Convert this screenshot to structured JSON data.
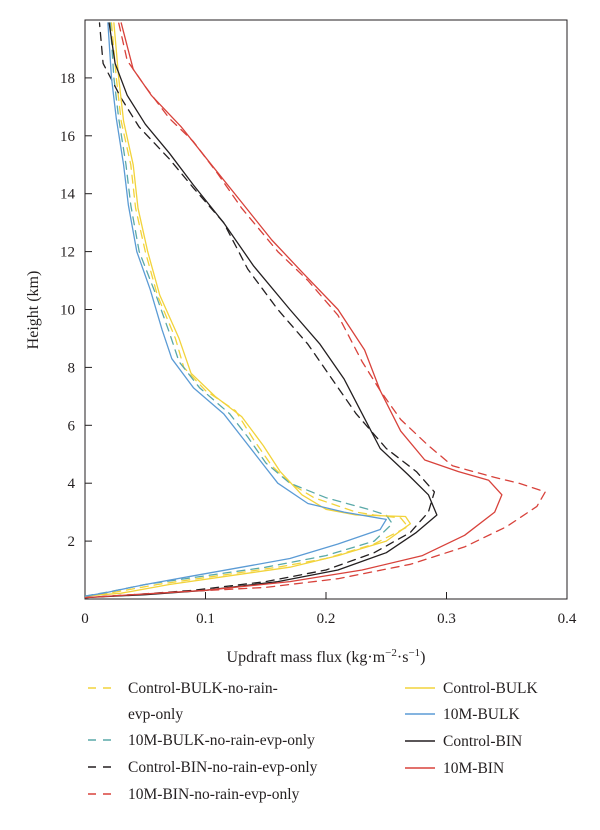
{
  "chart_data": {
    "type": "line",
    "xlabel_main": "Updraft mass flux (kg·m",
    "xlabel_sup1": "−2",
    "xlabel_mid": "·s",
    "xlabel_sup2": "−1",
    "xlabel_end": ")",
    "ylabel": "Height (km)",
    "xlim": [
      0,
      0.4
    ],
    "ylim": [
      0,
      20
    ],
    "xticks": [
      "0",
      "0.1",
      "0.2",
      "0.3",
      "0.4"
    ],
    "xtick_values": [
      0,
      0.1,
      0.2,
      0.3,
      0.4
    ],
    "yticks": [
      "2",
      "4",
      "6",
      "8",
      "10",
      "12",
      "14",
      "16",
      "18"
    ],
    "ytick_values": [
      2,
      4,
      6,
      8,
      10,
      12,
      14,
      16,
      18
    ],
    "grid": false,
    "legend_position": "bottom",
    "series": [
      {
        "name": "Control-BULK-no-rain-evp-only",
        "legend_lines": [
          "Control-BULK-no-rain-",
          "evp-only"
        ],
        "color": "#f2d33b",
        "dash": "8,6",
        "points": [
          [
            0.0,
            0.1
          ],
          [
            0.02,
            0.2
          ],
          [
            0.06,
            0.5
          ],
          [
            0.11,
            0.8
          ],
          [
            0.16,
            1.1
          ],
          [
            0.2,
            1.4
          ],
          [
            0.24,
            1.9
          ],
          [
            0.268,
            2.5
          ],
          [
            0.262,
            2.8
          ],
          [
            0.24,
            2.9
          ],
          [
            0.225,
            3.0
          ],
          [
            0.19,
            3.5
          ],
          [
            0.17,
            4.0
          ],
          [
            0.155,
            4.6
          ],
          [
            0.14,
            5.5
          ],
          [
            0.125,
            6.5
          ],
          [
            0.1,
            7.2
          ],
          [
            0.082,
            8.0
          ],
          [
            0.075,
            9.0
          ],
          [
            0.06,
            10.5
          ],
          [
            0.05,
            12.0
          ],
          [
            0.042,
            13.5
          ],
          [
            0.038,
            15.0
          ],
          [
            0.03,
            16.5
          ],
          [
            0.026,
            18.0
          ],
          [
            0.022,
            19.9
          ]
        ]
      },
      {
        "name": "10M-BULK-no-rain-evp-only",
        "legend_lines": [
          "10M-BULK-no-rain-evp-only"
        ],
        "color": "#5aa9a8",
        "dash": "8,6",
        "points": [
          [
            0.0,
            0.1
          ],
          [
            0.02,
            0.25
          ],
          [
            0.05,
            0.5
          ],
          [
            0.1,
            0.8
          ],
          [
            0.15,
            1.1
          ],
          [
            0.2,
            1.5
          ],
          [
            0.24,
            2.0
          ],
          [
            0.255,
            2.6
          ],
          [
            0.25,
            2.9
          ],
          [
            0.235,
            3.1
          ],
          [
            0.2,
            3.5
          ],
          [
            0.17,
            4.0
          ],
          [
            0.15,
            4.7
          ],
          [
            0.135,
            5.6
          ],
          [
            0.12,
            6.4
          ],
          [
            0.095,
            7.3
          ],
          [
            0.078,
            8.2
          ],
          [
            0.07,
            9.2
          ],
          [
            0.058,
            10.6
          ],
          [
            0.045,
            12.0
          ],
          [
            0.038,
            13.6
          ],
          [
            0.034,
            15.0
          ],
          [
            0.028,
            16.6
          ],
          [
            0.024,
            18.0
          ],
          [
            0.021,
            19.9
          ]
        ]
      },
      {
        "name": "Control-BIN-no-rain-evp-only",
        "legend_lines": [
          "Control-BIN-no-rain-evp-only"
        ],
        "color": "#231f20",
        "dash": "8,6",
        "points": [
          [
            0.0,
            0.05
          ],
          [
            0.04,
            0.15
          ],
          [
            0.09,
            0.3
          ],
          [
            0.15,
            0.6
          ],
          [
            0.2,
            1.0
          ],
          [
            0.24,
            1.6
          ],
          [
            0.27,
            2.3
          ],
          [
            0.285,
            3.0
          ],
          [
            0.29,
            3.7
          ],
          [
            0.275,
            4.4
          ],
          [
            0.25,
            5.2
          ],
          [
            0.225,
            6.4
          ],
          [
            0.205,
            7.6
          ],
          [
            0.185,
            8.8
          ],
          [
            0.16,
            10.0
          ],
          [
            0.135,
            11.4
          ],
          [
            0.115,
            13.0
          ],
          [
            0.09,
            14.2
          ],
          [
            0.07,
            15.2
          ],
          [
            0.045,
            16.3
          ],
          [
            0.03,
            17.3
          ],
          [
            0.015,
            18.5
          ],
          [
            0.012,
            19.9
          ]
        ]
      },
      {
        "name": "10M-BIN-no-rain-evp-only",
        "legend_lines": [
          "10M-BIN-no-rain-evp-only"
        ],
        "color": "#d8423b",
        "dash": "8,6",
        "points": [
          [
            0.0,
            0.05
          ],
          [
            0.08,
            0.25
          ],
          [
            0.15,
            0.4
          ],
          [
            0.21,
            0.7
          ],
          [
            0.27,
            1.2
          ],
          [
            0.315,
            1.8
          ],
          [
            0.35,
            2.5
          ],
          [
            0.375,
            3.2
          ],
          [
            0.382,
            3.7
          ],
          [
            0.36,
            4.0
          ],
          [
            0.34,
            4.2
          ],
          [
            0.305,
            4.6
          ],
          [
            0.285,
            5.3
          ],
          [
            0.262,
            6.2
          ],
          [
            0.245,
            7.2
          ],
          [
            0.23,
            8.2
          ],
          [
            0.21,
            9.8
          ],
          [
            0.185,
            11.0
          ],
          [
            0.16,
            12.0
          ],
          [
            0.13,
            13.5
          ],
          [
            0.11,
            14.7
          ],
          [
            0.09,
            15.8
          ],
          [
            0.07,
            16.6
          ],
          [
            0.05,
            17.7
          ],
          [
            0.035,
            18.6
          ],
          [
            0.028,
            19.9
          ]
        ]
      },
      {
        "name": "Control-BULK",
        "legend_lines": [
          "Control-BULK"
        ],
        "color": "#f2d33b",
        "dash": "",
        "points": [
          [
            0.0,
            0.1
          ],
          [
            0.03,
            0.2
          ],
          [
            0.07,
            0.5
          ],
          [
            0.12,
            0.8
          ],
          [
            0.17,
            1.1
          ],
          [
            0.21,
            1.5
          ],
          [
            0.25,
            2.0
          ],
          [
            0.27,
            2.6
          ],
          [
            0.266,
            2.85
          ],
          [
            0.225,
            2.9
          ],
          [
            0.2,
            3.1
          ],
          [
            0.18,
            3.6
          ],
          [
            0.162,
            4.4
          ],
          [
            0.148,
            5.3
          ],
          [
            0.13,
            6.3
          ],
          [
            0.108,
            7.0
          ],
          [
            0.088,
            7.8
          ],
          [
            0.078,
            9.0
          ],
          [
            0.062,
            10.5
          ],
          [
            0.052,
            12.0
          ],
          [
            0.044,
            13.5
          ],
          [
            0.04,
            15.0
          ],
          [
            0.032,
            16.5
          ],
          [
            0.028,
            18.0
          ],
          [
            0.024,
            19.9
          ]
        ]
      },
      {
        "name": "10M-BULK",
        "legend_lines": [
          "10M-BULK"
        ],
        "color": "#5b9bd5",
        "dash": "",
        "points": [
          [
            0.0,
            0.1
          ],
          [
            0.015,
            0.2
          ],
          [
            0.05,
            0.5
          ],
          [
            0.09,
            0.8
          ],
          [
            0.13,
            1.1
          ],
          [
            0.17,
            1.4
          ],
          [
            0.21,
            1.9
          ],
          [
            0.245,
            2.4
          ],
          [
            0.25,
            2.75
          ],
          [
            0.215,
            3.0
          ],
          [
            0.185,
            3.3
          ],
          [
            0.16,
            4.0
          ],
          [
            0.145,
            4.8
          ],
          [
            0.13,
            5.6
          ],
          [
            0.115,
            6.4
          ],
          [
            0.09,
            7.3
          ],
          [
            0.072,
            8.3
          ],
          [
            0.064,
            9.3
          ],
          [
            0.054,
            10.7
          ],
          [
            0.043,
            12.0
          ],
          [
            0.036,
            13.6
          ],
          [
            0.032,
            15.0
          ],
          [
            0.026,
            16.6
          ],
          [
            0.022,
            18.0
          ],
          [
            0.019,
            19.9
          ]
        ]
      },
      {
        "name": "Control-BIN",
        "legend_lines": [
          "Control-BIN"
        ],
        "color": "#231f20",
        "dash": "",
        "points": [
          [
            0.0,
            0.05
          ],
          [
            0.05,
            0.15
          ],
          [
            0.1,
            0.3
          ],
          [
            0.16,
            0.6
          ],
          [
            0.21,
            1.0
          ],
          [
            0.25,
            1.6
          ],
          [
            0.275,
            2.3
          ],
          [
            0.292,
            2.9
          ],
          [
            0.285,
            3.6
          ],
          [
            0.268,
            4.3
          ],
          [
            0.245,
            5.2
          ],
          [
            0.23,
            6.4
          ],
          [
            0.215,
            7.6
          ],
          [
            0.195,
            8.8
          ],
          [
            0.17,
            10.0
          ],
          [
            0.14,
            11.5
          ],
          [
            0.115,
            13.0
          ],
          [
            0.09,
            14.3
          ],
          [
            0.07,
            15.4
          ],
          [
            0.05,
            16.4
          ],
          [
            0.035,
            17.4
          ],
          [
            0.025,
            18.5
          ],
          [
            0.02,
            19.9
          ]
        ]
      },
      {
        "name": "10M-BIN",
        "legend_lines": [
          "10M-BIN"
        ],
        "color": "#d8423b",
        "dash": "",
        "points": [
          [
            0.0,
            0.05
          ],
          [
            0.1,
            0.3
          ],
          [
            0.17,
            0.6
          ],
          [
            0.23,
            1.0
          ],
          [
            0.28,
            1.5
          ],
          [
            0.315,
            2.2
          ],
          [
            0.34,
            3.0
          ],
          [
            0.346,
            3.6
          ],
          [
            0.335,
            4.1
          ],
          [
            0.31,
            4.4
          ],
          [
            0.282,
            4.8
          ],
          [
            0.262,
            5.8
          ],
          [
            0.245,
            7.2
          ],
          [
            0.232,
            8.6
          ],
          [
            0.21,
            10.0
          ],
          [
            0.18,
            11.3
          ],
          [
            0.155,
            12.4
          ],
          [
            0.13,
            13.7
          ],
          [
            0.105,
            15.0
          ],
          [
            0.08,
            16.3
          ],
          [
            0.055,
            17.4
          ],
          [
            0.04,
            18.3
          ],
          [
            0.03,
            19.9
          ]
        ]
      }
    ]
  }
}
